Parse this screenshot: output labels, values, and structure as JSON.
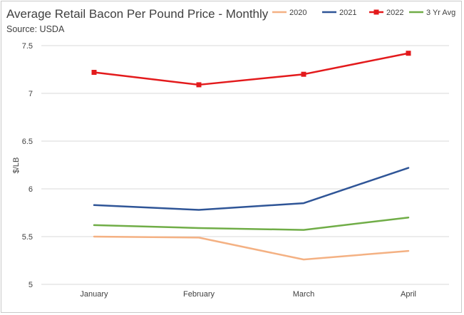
{
  "chart_data": {
    "type": "line",
    "title": "Average Retail Bacon Per Pound Price - Monthly",
    "subtitle": "Source: USDA",
    "xlabel": "",
    "ylabel": "$/LB",
    "categories": [
      "January",
      "February",
      "March",
      "April"
    ],
    "ylim": [
      5,
      7.5
    ],
    "yticks": [
      "5",
      "5.5",
      "6",
      "6.5",
      "7",
      "7.5"
    ],
    "grid": true,
    "legend_position": "top-right",
    "series": [
      {
        "name": "2020",
        "color": "#f4b183",
        "marker": "none",
        "values": [
          5.5,
          5.49,
          5.26,
          5.35
        ]
      },
      {
        "name": "2021",
        "color": "#2f5597",
        "marker": "none",
        "values": [
          5.83,
          5.78,
          5.85,
          6.22
        ]
      },
      {
        "name": "2022",
        "color": "#e31a1c",
        "marker": "square",
        "values": [
          7.22,
          7.09,
          7.2,
          7.42
        ]
      },
      {
        "name": "3 Yr Avg",
        "color": "#70ad47",
        "marker": "none",
        "values": [
          5.62,
          5.59,
          5.57,
          5.7
        ]
      }
    ]
  }
}
